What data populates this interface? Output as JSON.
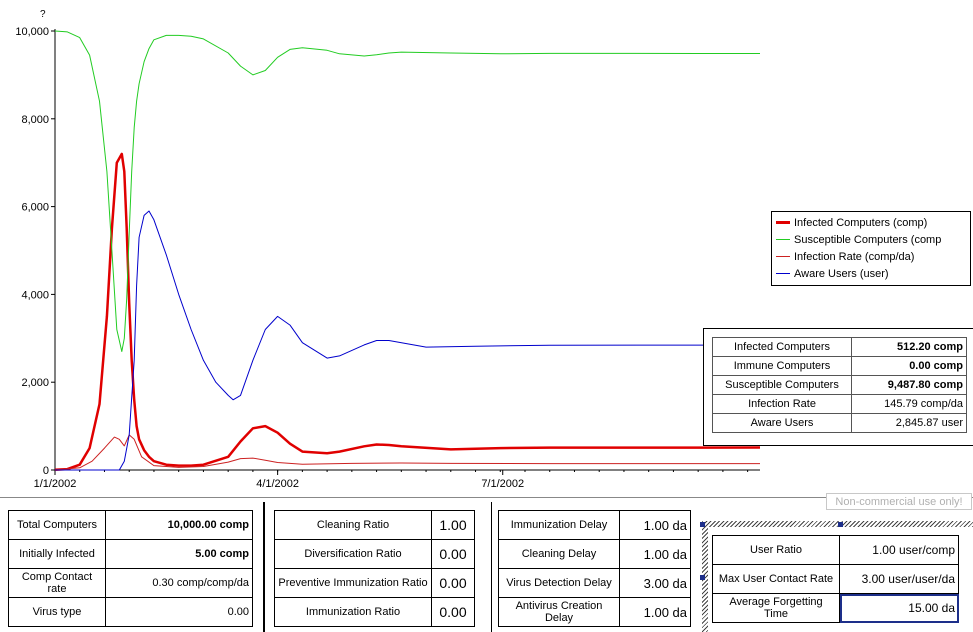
{
  "chart_data": {
    "type": "line",
    "yaxis_unit": "?",
    "ylim": [
      0,
      10000
    ],
    "yticks": [
      "0",
      "2,000",
      "4,000",
      "6,000",
      "8,000",
      "10,000"
    ],
    "xticks": [
      "1/1/2002",
      "4/1/2002",
      "7/1/2002"
    ],
    "x_day_ticks": [
      0,
      90,
      181
    ],
    "xlim": [
      0,
      285
    ],
    "grid": false,
    "legend_position": "right",
    "series": [
      {
        "name": "Infected Computers (comp)",
        "color": "#e00000",
        "x": [
          0,
          5,
          10,
          14,
          18,
          21,
          23,
          25,
          27,
          28,
          29,
          30,
          31,
          32,
          33,
          34,
          36,
          38,
          40,
          45,
          50,
          55,
          60,
          70,
          75,
          80,
          85,
          90,
          95,
          100,
          110,
          115,
          125,
          130,
          135,
          140,
          160,
          180,
          200,
          230,
          260,
          285
        ],
        "y": [
          5,
          20,
          120,
          500,
          1500,
          3500,
          5500,
          7000,
          7200,
          6800,
          5500,
          3800,
          2500,
          1600,
          1000,
          700,
          450,
          300,
          200,
          120,
          100,
          100,
          120,
          300,
          650,
          950,
          1000,
          850,
          600,
          420,
          380,
          420,
          540,
          580,
          570,
          540,
          470,
          500,
          510,
          510,
          510,
          512
        ]
      },
      {
        "name": "Susceptible Computers (comp",
        "color": "#22cc22",
        "x": [
          0,
          5,
          10,
          14,
          18,
          21,
          23,
          25,
          27,
          28,
          29,
          30,
          31,
          32,
          33,
          34,
          36,
          38,
          40,
          45,
          50,
          55,
          60,
          70,
          75,
          80,
          85,
          90,
          95,
          100,
          110,
          115,
          125,
          130,
          135,
          140,
          160,
          180,
          200,
          230,
          260,
          285
        ],
        "y": [
          10000,
          9980,
          9850,
          9450,
          8400,
          6800,
          5000,
          3200,
          2700,
          3000,
          3900,
          5400,
          6800,
          7800,
          8400,
          8800,
          9300,
          9600,
          9800,
          9900,
          9900,
          9880,
          9820,
          9500,
          9200,
          9000,
          9100,
          9400,
          9580,
          9620,
          9560,
          9480,
          9430,
          9460,
          9500,
          9520,
          9500,
          9480,
          9490,
          9490,
          9488,
          9488
        ]
      },
      {
        "name": "Infection Rate (comp/da)",
        "color": "#cc2222",
        "x": [
          0,
          10,
          15,
          20,
          24,
          26,
          28,
          30,
          32,
          35,
          40,
          50,
          60,
          70,
          75,
          80,
          85,
          90,
          100,
          120,
          140,
          160,
          200,
          240,
          285
        ],
        "y": [
          0,
          50,
          200,
          500,
          750,
          700,
          550,
          800,
          700,
          300,
          100,
          60,
          80,
          180,
          260,
          270,
          220,
          170,
          130,
          150,
          160,
          150,
          146,
          146,
          146
        ]
      },
      {
        "name": "Aware Users (user)",
        "color": "#0000cc",
        "x": [
          0,
          26,
          28,
          30,
          32,
          33,
          34,
          36,
          38,
          40,
          45,
          50,
          55,
          60,
          65,
          70,
          72,
          75,
          80,
          85,
          90,
          95,
          100,
          110,
          115,
          125,
          130,
          135,
          150,
          170,
          200,
          250,
          285
        ],
        "y": [
          0,
          0,
          200,
          800,
          2500,
          4200,
          5300,
          5800,
          5900,
          5700,
          4900,
          4000,
          3200,
          2500,
          2000,
          1700,
          1600,
          1700,
          2500,
          3200,
          3500,
          3300,
          2900,
          2550,
          2600,
          2850,
          2950,
          2950,
          2800,
          2820,
          2840,
          2845,
          2846
        ]
      }
    ]
  },
  "status": [
    {
      "name": "Infected Computers",
      "value": "512.20 comp",
      "bold": true
    },
    {
      "name": "Immune Computers",
      "value": "0.00 comp",
      "bold": true
    },
    {
      "name": "Susceptible Computers",
      "value": "9,487.80 comp",
      "bold": true
    },
    {
      "name": "Infection Rate",
      "value": "145.79 comp/da",
      "bold": false
    },
    {
      "name": "Aware Users",
      "value": "2,845.87 user",
      "bold": false
    }
  ],
  "watermark": "Non-commercial use only!",
  "params_group1": [
    {
      "name": "Total Computers",
      "value": "10,000.00 comp",
      "bold": true
    },
    {
      "name": "Initially Infected",
      "value": "5.00 comp",
      "bold": true
    },
    {
      "name": "Comp Contact rate",
      "value": "0.30 comp/comp/da",
      "bold": false
    },
    {
      "name": "Virus type",
      "value": "0.00",
      "bold": false
    }
  ],
  "params_group2": [
    {
      "name": "Cleaning Ratio",
      "value": "1.00"
    },
    {
      "name": "Diversification Ratio",
      "value": "0.00"
    },
    {
      "name": "Preventive Immunization Ratio",
      "value": "0.00"
    },
    {
      "name": "Immunization Ratio",
      "value": "0.00"
    }
  ],
  "params_group3": [
    {
      "name": "Immunization Delay",
      "value": "1.00 da"
    },
    {
      "name": "Cleaning Delay",
      "value": "1.00 da"
    },
    {
      "name": "Virus Detection Delay",
      "value": "3.00 da"
    },
    {
      "name": "Antivirus Creation Delay",
      "value": "1.00 da"
    }
  ],
  "params_group4": [
    {
      "name": "User Ratio",
      "value": "1.00 user/comp"
    },
    {
      "name": "Max User Contact Rate",
      "value": "3.00 user/user/da"
    },
    {
      "name": "Average Forgetting Time",
      "value": "15.00 da",
      "selected": true
    }
  ]
}
